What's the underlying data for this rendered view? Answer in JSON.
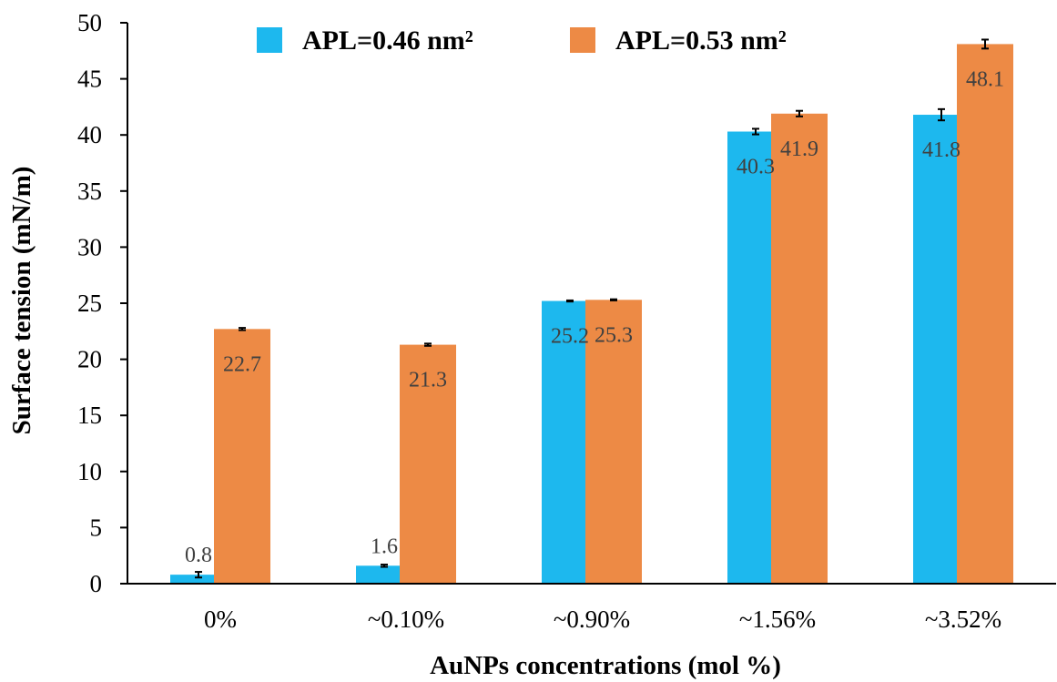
{
  "chart_data": {
    "type": "bar",
    "title": "",
    "xlabel": "AuNPs concentrations (mol %)",
    "ylabel": "Surface tension (mN/m)",
    "ylim": [
      0,
      50
    ],
    "yticks": [
      0,
      5,
      10,
      15,
      20,
      25,
      30,
      35,
      40,
      45,
      50
    ],
    "categories": [
      "0%",
      "~0.10%",
      "~0.90%",
      "~1.56%",
      "~3.52%"
    ],
    "legend_position": "top-center",
    "grid": false,
    "series": [
      {
        "name": "APL=0.46 nm²",
        "color": "#1DB8EE",
        "values": [
          0.8,
          1.6,
          25.2,
          40.3,
          41.8
        ],
        "errors": [
          0.25,
          0.1,
          0.05,
          0.25,
          0.5
        ],
        "labels": [
          "0.8",
          "1.6",
          "25.2",
          "40.3",
          "41.8"
        ]
      },
      {
        "name": "APL=0.53 nm²",
        "color": "#ED8A45",
        "values": [
          22.7,
          21.3,
          25.3,
          41.9,
          48.1
        ],
        "errors": [
          0.1,
          0.1,
          0.05,
          0.25,
          0.4
        ],
        "labels": [
          "22.7",
          "21.3",
          "25.3",
          "41.9",
          "48.1"
        ]
      }
    ]
  }
}
